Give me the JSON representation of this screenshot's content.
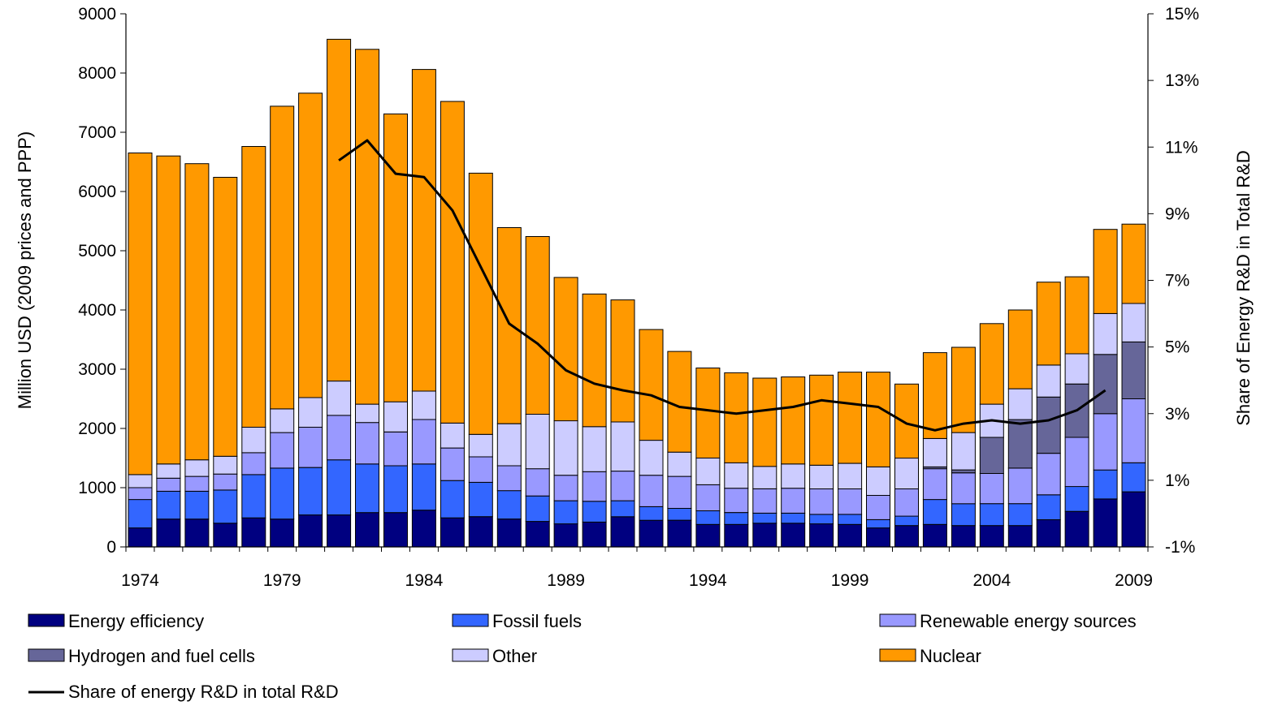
{
  "chart_data": {
    "type": "bar",
    "stacked": true,
    "categories": [
      "1974",
      "1975",
      "1976",
      "1977",
      "1978",
      "1979",
      "1980",
      "1981",
      "1982",
      "1983",
      "1984",
      "1985",
      "1986",
      "1987",
      "1988",
      "1989",
      "1990",
      "1991",
      "1992",
      "1993",
      "1994",
      "1995",
      "1996",
      "1997",
      "1998",
      "1999",
      "2000",
      "2001",
      "2002",
      "2003",
      "2004",
      "2005",
      "2006",
      "2007",
      "2008",
      "2009"
    ],
    "x_tick_labels": [
      "1974",
      "1979",
      "1984",
      "1989",
      "1994",
      "1999",
      "2004",
      "2009"
    ],
    "ylabel": "Million USD (2009 prices and PPP)",
    "ylim": [
      0,
      9000
    ],
    "yticks": [
      0,
      1000,
      2000,
      3000,
      4000,
      5000,
      6000,
      7000,
      8000,
      9000
    ],
    "ylabel_right": "Share of Energy R&D in Total R&D",
    "ylim_right": [
      -1,
      15
    ],
    "yticks_right": [
      "-1%",
      "1%",
      "3%",
      "5%",
      "7%",
      "9%",
      "11%",
      "13%",
      "15%"
    ],
    "legend_position": "bottom",
    "series": [
      {
        "name": "Energy efficiency",
        "color": "#000080",
        "values": [
          320,
          470,
          470,
          400,
          490,
          470,
          540,
          540,
          580,
          580,
          620,
          490,
          510,
          470,
          430,
          390,
          420,
          510,
          450,
          450,
          380,
          380,
          400,
          400,
          390,
          380,
          320,
          360,
          380,
          360,
          360,
          360,
          460,
          600,
          810,
          930
        ]
      },
      {
        "name": "Fossil fuels",
        "color": "#3366ff",
        "values": [
          480,
          470,
          470,
          560,
          730,
          860,
          800,
          930,
          820,
          790,
          780,
          630,
          580,
          480,
          430,
          390,
          350,
          270,
          230,
          200,
          230,
          200,
          170,
          170,
          160,
          170,
          140,
          160,
          420,
          370,
          370,
          370,
          420,
          420,
          490,
          490
        ]
      },
      {
        "name": "Renewable energy sources",
        "color": "#9999ff",
        "values": [
          200,
          220,
          250,
          270,
          370,
          600,
          680,
          750,
          700,
          570,
          750,
          550,
          430,
          420,
          460,
          430,
          500,
          500,
          530,
          540,
          440,
          410,
          410,
          420,
          430,
          430,
          410,
          460,
          520,
          520,
          510,
          600,
          700,
          830,
          950,
          1080
        ]
      },
      {
        "name": "Hydrogen and fuel cells",
        "color": "#666699",
        "values": [
          0,
          0,
          0,
          0,
          0,
          0,
          0,
          0,
          0,
          0,
          0,
          0,
          0,
          0,
          0,
          0,
          0,
          0,
          0,
          0,
          0,
          0,
          0,
          0,
          0,
          0,
          0,
          0,
          30,
          50,
          610,
          820,
          950,
          900,
          1000,
          960
        ]
      },
      {
        "name": "Other",
        "color": "#ccccff",
        "values": [
          220,
          240,
          280,
          300,
          430,
          400,
          500,
          580,
          310,
          510,
          480,
          420,
          380,
          710,
          920,
          920,
          760,
          830,
          590,
          410,
          450,
          430,
          380,
          410,
          400,
          430,
          480,
          520,
          480,
          630,
          560,
          520,
          540,
          510,
          690,
          650
        ]
      },
      {
        "name": "Nuclear",
        "color": "#ff9900",
        "values": [
          5430,
          5200,
          5000,
          4710,
          4740,
          5110,
          5140,
          5770,
          5990,
          4860,
          5430,
          5430,
          4410,
          3310,
          3000,
          2420,
          2240,
          2060,
          1870,
          1700,
          1520,
          1520,
          1490,
          1470,
          1520,
          1540,
          1600,
          1250,
          1450,
          1440,
          1360,
          1330,
          1400,
          1300,
          1420,
          1340
        ]
      }
    ],
    "line_series": {
      "name": "Share of energy R&D in total R&D",
      "color": "#000000",
      "axis": "right",
      "x": [
        "1981",
        "1982",
        "1983",
        "1984",
        "1985",
        "1986",
        "1987",
        "1988",
        "1989",
        "1990",
        "1991",
        "1992",
        "1993",
        "1994",
        "1995",
        "1996",
        "1997",
        "1998",
        "1999",
        "2000",
        "2001",
        "2002",
        "2003",
        "2004",
        "2005",
        "2006",
        "2007",
        "2008"
      ],
      "values": [
        10.6,
        11.2,
        10.2,
        10.1,
        9.1,
        7.4,
        5.7,
        5.1,
        4.3,
        3.9,
        3.7,
        3.55,
        3.2,
        3.1,
        3.0,
        3.1,
        3.2,
        3.4,
        3.3,
        3.2,
        2.7,
        2.5,
        2.7,
        2.8,
        2.7,
        2.8,
        3.1,
        3.7
      ]
    }
  }
}
